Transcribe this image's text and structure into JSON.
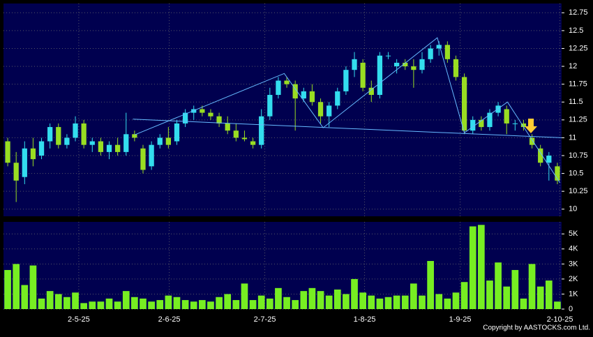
{
  "chart_data": [
    {
      "type": "candlestick",
      "xlim": [
        -0.5,
        65.5
      ],
      "xticks": [
        {
          "value": 8.4,
          "label": "2-5-25"
        },
        {
          "value": 19.1,
          "label": "2-6-25"
        },
        {
          "value": 30.4,
          "label": "2-7-25"
        },
        {
          "value": 42.2,
          "label": "1-8-25"
        },
        {
          "value": 53.5,
          "label": "1-9-25"
        },
        {
          "value": 65.3,
          "label": "2-10-25"
        }
      ],
      "ylim": [
        9.9,
        12.88
      ],
      "yticks": [
        10,
        10.25,
        10.5,
        10.75,
        11,
        11.25,
        11.5,
        11.75,
        12,
        12.25,
        12.5,
        12.75
      ],
      "grid": true,
      "up_color": "#33ddee",
      "down_color": "#99dd22",
      "open": [
        10.95,
        10.65,
        10.45,
        10.85,
        10.75,
        10.95,
        11.15,
        10.9,
        11.0,
        11.2,
        10.9,
        10.95,
        10.8,
        10.9,
        10.8,
        11.05,
        10.85,
        10.6,
        10.9,
        11.0,
        10.95,
        11.2,
        11.35,
        11.4,
        11.35,
        11.3,
        11.2,
        11.1,
        11.0,
        10.95,
        10.9,
        11.3,
        11.6,
        11.8,
        11.75,
        11.55,
        11.65,
        11.5,
        11.3,
        11.45,
        11.65,
        11.95,
        12.05,
        11.7,
        11.6,
        12.15,
        12.0,
        12.05,
        12.0,
        11.95,
        12.1,
        12.25,
        12.3,
        12.1,
        11.85,
        11.1,
        11.25,
        11.15,
        11.35,
        11.4,
        11.2,
        11.2,
        11.0,
        10.85,
        10.65,
        10.6
      ],
      "high": [
        11.0,
        10.8,
        10.95,
        11.0,
        11.0,
        11.2,
        11.2,
        11.05,
        11.3,
        11.25,
        11.0,
        11.0,
        10.95,
        11.0,
        11.35,
        11.1,
        10.9,
        10.95,
        11.05,
        11.15,
        11.25,
        11.4,
        11.45,
        11.45,
        11.4,
        11.35,
        11.3,
        11.2,
        11.1,
        11.0,
        11.4,
        11.7,
        11.85,
        11.85,
        11.8,
        11.7,
        11.75,
        11.55,
        11.5,
        11.7,
        12.0,
        12.2,
        12.1,
        11.8,
        12.2,
        12.2,
        12.1,
        12.1,
        12.1,
        12.2,
        12.3,
        12.35,
        12.35,
        12.15,
        11.9,
        11.3,
        11.3,
        11.4,
        11.5,
        11.45,
        11.25,
        11.25,
        11.05,
        10.9,
        10.8,
        10.65
      ],
      "low": [
        10.6,
        10.1,
        10.35,
        10.6,
        10.7,
        10.85,
        10.85,
        10.85,
        10.95,
        10.85,
        10.8,
        10.75,
        10.7,
        10.75,
        10.75,
        10.95,
        10.5,
        10.55,
        10.85,
        10.85,
        10.9,
        11.15,
        11.25,
        11.3,
        11.25,
        11.15,
        11.05,
        10.95,
        10.95,
        10.85,
        10.85,
        11.25,
        11.55,
        11.7,
        11.1,
        11.5,
        11.45,
        11.2,
        11.15,
        11.4,
        11.6,
        11.85,
        11.65,
        11.5,
        11.55,
        12.1,
        11.9,
        11.95,
        11.7,
        11.9,
        12.05,
        12.15,
        12.05,
        11.8,
        11.05,
        11.05,
        11.1,
        11.1,
        11.3,
        11.05,
        11.1,
        11.1,
        10.85,
        10.6,
        10.4,
        10.35
      ],
      "close": [
        10.65,
        10.4,
        10.85,
        10.7,
        10.95,
        11.15,
        10.9,
        11.0,
        11.2,
        10.9,
        10.95,
        10.8,
        10.9,
        10.8,
        11.05,
        11.0,
        10.55,
        10.9,
        11.0,
        10.9,
        11.2,
        11.35,
        11.4,
        11.35,
        11.3,
        11.2,
        11.1,
        11.0,
        10.98,
        10.9,
        11.3,
        11.6,
        11.8,
        11.75,
        11.55,
        11.65,
        11.5,
        11.3,
        11.45,
        11.65,
        11.95,
        12.1,
        11.7,
        11.6,
        12.15,
        12.15,
        12.05,
        12.0,
        11.95,
        12.1,
        12.25,
        12.3,
        12.1,
        11.85,
        11.1,
        11.25,
        11.15,
        11.35,
        11.45,
        11.2,
        11.2,
        11.15,
        10.9,
        10.65,
        10.75,
        10.4
      ],
      "trendlines": [
        {
          "color": "#66bbff",
          "x": [
            14.8,
            65.5
          ],
          "y": [
            11.26,
            11.0
          ]
        },
        {
          "color": "#66bbff",
          "x": [
            15.0,
            32.7,
            37.3,
            50.8,
            54.0,
            59.1,
            65.3
          ],
          "y": [
            11.04,
            11.9,
            11.14,
            12.4,
            11.07,
            11.5,
            10.37
          ]
        }
      ]
    },
    {
      "type": "bar",
      "color": "#77ee22",
      "ylim": [
        0,
        5800
      ],
      "yticks": [
        0,
        {
          "value": 1000,
          "label": "1K"
        },
        {
          "value": 2000,
          "label": "2K"
        },
        {
          "value": 3000,
          "label": "3K"
        },
        {
          "value": 4000,
          "label": "4K"
        },
        {
          "value": 5000,
          "label": "5K"
        }
      ],
      "values": [
        2600,
        3000,
        1600,
        2900,
        700,
        1200,
        1000,
        800,
        1100,
        400,
        500,
        500,
        700,
        500,
        1200,
        800,
        700,
        500,
        600,
        900,
        800,
        600,
        500,
        600,
        500,
        800,
        1000,
        600,
        1700,
        600,
        900,
        700,
        1400,
        800,
        600,
        1200,
        1400,
        1200,
        900,
        1300,
        1000,
        2000,
        1100,
        900,
        700,
        800,
        900,
        900,
        1700,
        900,
        3200,
        1000,
        700,
        1100,
        1800,
        5500,
        5600,
        1900,
        3100,
        1500,
        2600,
        700,
        3000,
        1500,
        1900,
        500
      ],
      "source": "Copyright by AASTOCKS.com Ltd."
    }
  ]
}
